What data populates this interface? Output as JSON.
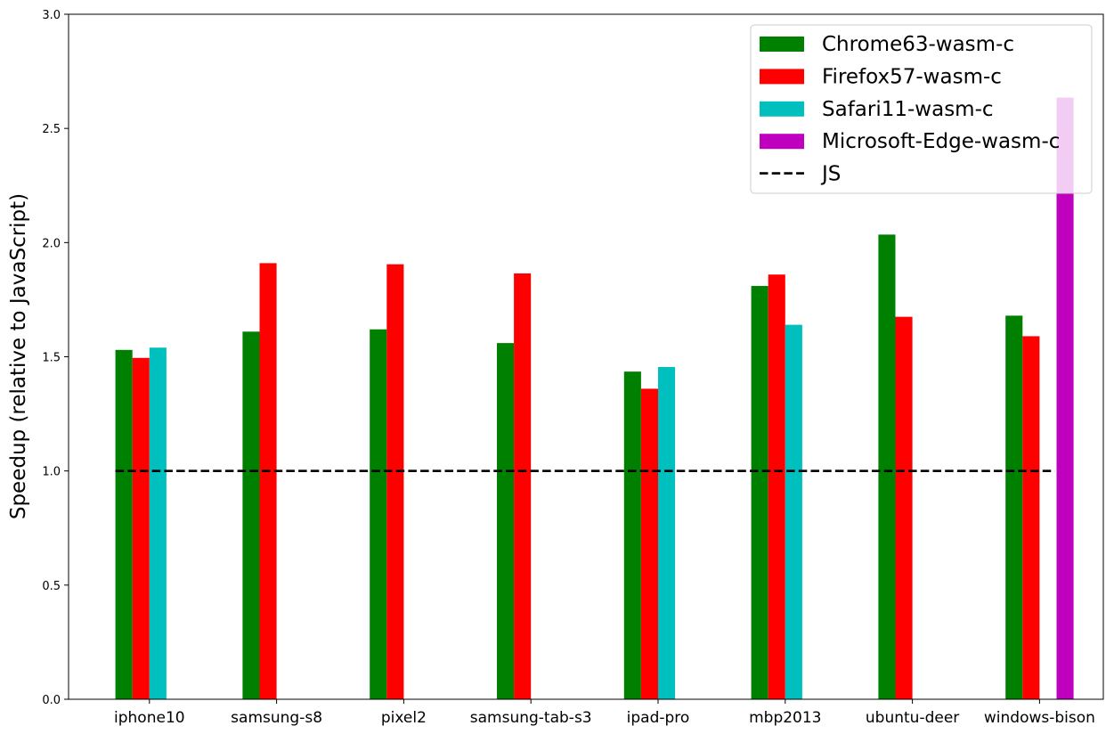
{
  "chart_data": {
    "type": "bar",
    "title": "",
    "xlabel": "",
    "ylabel": "Speedup (relative to JavaScript)",
    "ylim": [
      0,
      3.0
    ],
    "yticks": [
      "0.0",
      "0.5",
      "1.0",
      "1.5",
      "2.0",
      "2.5",
      "3.0"
    ],
    "categories": [
      "iphone10",
      "samsung-s8",
      "pixel2",
      "samsung-tab-s3",
      "ipad-pro",
      "mbp2013",
      "ubuntu-deer",
      "windows-bison"
    ],
    "series": [
      {
        "name": "Chrome63-wasm-c",
        "color": "#008000",
        "values": [
          1.53,
          1.61,
          1.62,
          1.56,
          1.435,
          1.81,
          2.035,
          1.68
        ]
      },
      {
        "name": "Firefox57-wasm-c",
        "color": "#ff0000",
        "values": [
          1.495,
          1.91,
          1.905,
          1.865,
          1.36,
          1.86,
          1.675,
          1.59
        ]
      },
      {
        "name": "Safari11-wasm-c",
        "color": "#00bfbf",
        "values": [
          1.54,
          null,
          null,
          null,
          1.455,
          1.64,
          null,
          null
        ]
      },
      {
        "name": "Microsoft-Edge-wasm-c",
        "color": "#bf00bf",
        "values": [
          null,
          null,
          null,
          null,
          null,
          null,
          null,
          2.635
        ]
      }
    ],
    "reference_line": {
      "name": "JS",
      "value": 1.0,
      "style": "dashed",
      "color": "#000000"
    },
    "legend_position": "top-right",
    "grid": false
  }
}
